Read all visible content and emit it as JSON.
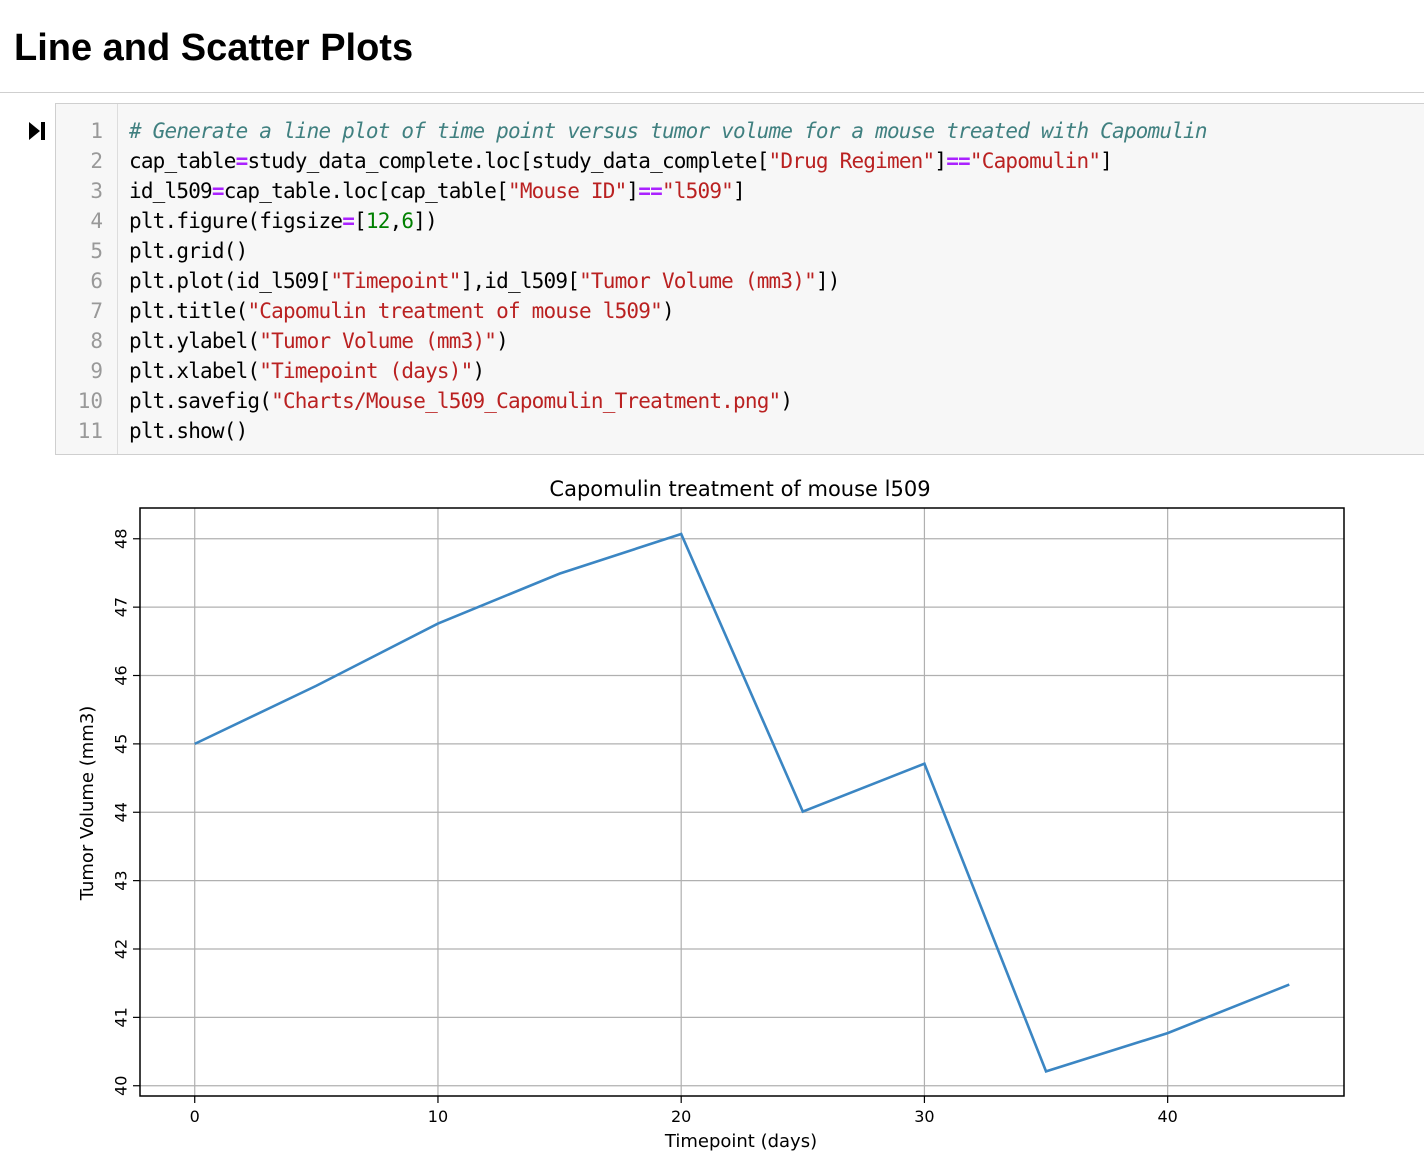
{
  "heading": "Line and Scatter Plots",
  "colors": {
    "line": "#3b86c3",
    "grid": "#b0b0b0",
    "comment": "#408080",
    "string": "#ba2121",
    "operator": "#aa22ff",
    "number": "#008000"
  },
  "icons": {
    "run": "step-forward-icon"
  },
  "code": {
    "line_numbers": [
      "1",
      "2",
      "3",
      "4",
      "5",
      "6",
      "7",
      "8",
      "9",
      "10",
      "11"
    ],
    "lines": [
      [
        {
          "t": "# Generate a line plot of time point versus tumor volume for a mouse treated with Capomulin",
          "c": "com"
        }
      ],
      [
        {
          "t": "cap_table"
        },
        {
          "t": "=",
          "c": "op"
        },
        {
          "t": "study_data_complete.loc[study_data_complete["
        },
        {
          "t": "\"Drug Regimen\"",
          "c": "str"
        },
        {
          "t": "]"
        },
        {
          "t": "==",
          "c": "op"
        },
        {
          "t": "\"Capomulin\"",
          "c": "str"
        },
        {
          "t": "]"
        }
      ],
      [
        {
          "t": "id_l509"
        },
        {
          "t": "=",
          "c": "op"
        },
        {
          "t": "cap_table.loc[cap_table["
        },
        {
          "t": "\"Mouse ID\"",
          "c": "str"
        },
        {
          "t": "]"
        },
        {
          "t": "==",
          "c": "op"
        },
        {
          "t": "\"l509\"",
          "c": "str"
        },
        {
          "t": "]"
        }
      ],
      [
        {
          "t": "plt.figure(figsize"
        },
        {
          "t": "=",
          "c": "op"
        },
        {
          "t": "["
        },
        {
          "t": "12",
          "c": "num"
        },
        {
          "t": ","
        },
        {
          "t": "6",
          "c": "num"
        },
        {
          "t": "])"
        }
      ],
      [
        {
          "t": "plt.grid()"
        }
      ],
      [
        {
          "t": "plt.plot(id_l509["
        },
        {
          "t": "\"Timepoint\"",
          "c": "str"
        },
        {
          "t": "],id_l509["
        },
        {
          "t": "\"Tumor Volume (mm3)\"",
          "c": "str"
        },
        {
          "t": "])"
        }
      ],
      [
        {
          "t": "plt.title("
        },
        {
          "t": "\"Capomulin treatment of mouse l509\"",
          "c": "str"
        },
        {
          "t": ")"
        }
      ],
      [
        {
          "t": "plt.ylabel("
        },
        {
          "t": "\"Tumor Volume (mm3)\"",
          "c": "str"
        },
        {
          "t": ")"
        }
      ],
      [
        {
          "t": "plt.xlabel("
        },
        {
          "t": "\"Timepoint (days)\"",
          "c": "str"
        },
        {
          "t": ")"
        }
      ],
      [
        {
          "t": "plt.savefig("
        },
        {
          "t": "\"Charts/Mouse_l509_Capomulin_Treatment.png\"",
          "c": "str"
        },
        {
          "t": ")"
        }
      ],
      [
        {
          "t": "plt.show()"
        }
      ]
    ]
  },
  "chart_data": {
    "type": "line",
    "title": "Capomulin treatment of mouse l509",
    "xlabel": "Timepoint (days)",
    "ylabel": "Tumor Volume (mm3)",
    "x": [
      0,
      5,
      10,
      15,
      20,
      25,
      30,
      35,
      40,
      45
    ],
    "y": [
      45.0,
      45.85,
      46.76,
      47.49,
      48.07,
      44.01,
      44.71,
      40.21,
      40.77,
      41.48
    ],
    "xlim": [
      -2.25,
      47.25
    ],
    "ylim": [
      39.85,
      48.45
    ],
    "xticks": [
      0,
      10,
      20,
      30,
      40
    ],
    "yticks": [
      40,
      41,
      42,
      43,
      44,
      45,
      46,
      47,
      48
    ],
    "grid": true
  }
}
